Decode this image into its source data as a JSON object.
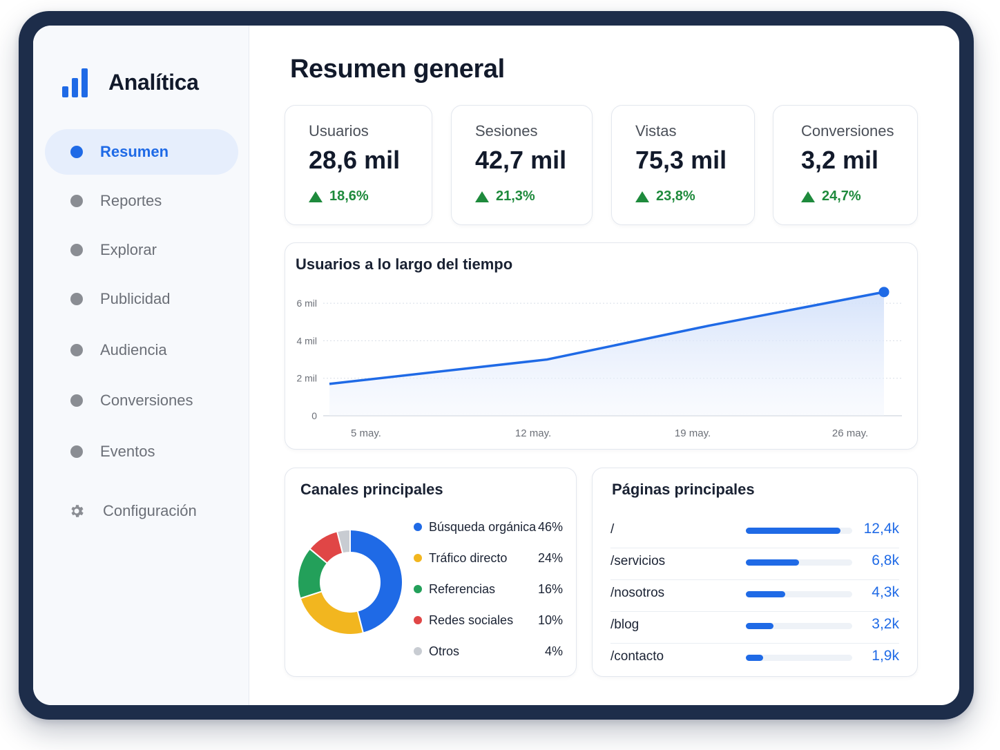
{
  "app": {
    "title": "Analítica"
  },
  "sidebar": {
    "items": [
      {
        "label": "Resumen",
        "active": true
      },
      {
        "label": "Reportes"
      },
      {
        "label": "Explorar"
      },
      {
        "label": "Publicidad"
      },
      {
        "label": "Audiencia"
      },
      {
        "label": "Conversiones"
      },
      {
        "label": "Eventos"
      }
    ],
    "settings": {
      "label": "Configuración",
      "icon": "gear-icon"
    }
  },
  "main": {
    "title": "Resumen general",
    "kpis": [
      {
        "label": "Usuarios",
        "value": "28,6 mil",
        "delta": "18,6%"
      },
      {
        "label": "Sesiones",
        "value": "42,7 mil",
        "delta": "21,3%"
      },
      {
        "label": "Vistas",
        "value": "75,3 mil",
        "delta": "23,8%"
      },
      {
        "label": "Conversiones",
        "value": "3,2 mil",
        "delta": "24,7%"
      }
    ],
    "users_chart": {
      "title": "Usuarios a lo largo del tiempo",
      "y_ticks": [
        "0",
        "2 mil",
        "4 mil",
        "6 mil"
      ],
      "x_ticks": [
        "5 may.",
        "12 may.",
        "19 may.",
        "26 may."
      ]
    },
    "channels": {
      "title": "Canales principales",
      "items": [
        {
          "label": "Búsqueda orgánica",
          "pct": "46%",
          "color": "#1f6ae6"
        },
        {
          "label": "Tráfico directo",
          "pct": "24%",
          "color": "#f2b61f"
        },
        {
          "label": "Referencias",
          "pct": "16%",
          "color": "#23a05a"
        },
        {
          "label": "Redes sociales",
          "pct": "10%",
          "color": "#e04646"
        },
        {
          "label": "Otros",
          "pct": "4%",
          "color": "#c8ccd2"
        }
      ]
    },
    "pages": {
      "title": "Páginas principales",
      "rows": [
        {
          "path": "/",
          "value": "12,4k",
          "share": 0.89
        },
        {
          "path": "/servicios",
          "value": "6,8k",
          "share": 0.5
        },
        {
          "path": "/nosotros",
          "value": "4,3k",
          "share": 0.37
        },
        {
          "path": "/blog",
          "value": "3,2k",
          "share": 0.26
        },
        {
          "path": "/contacto",
          "value": "1,9k",
          "share": 0.16
        }
      ]
    }
  },
  "colors": {
    "accent": "#1f6ae6",
    "positive": "#1e8a3c",
    "frame": "#1d2d4a"
  },
  "chart_data": [
    {
      "type": "area",
      "title": "Usuarios a lo largo del tiempo",
      "x": [
        "5 may.",
        "12 may.",
        "19 may.",
        "26 may."
      ],
      "series": [
        {
          "x": [
            "2025-05-05",
            "2025-05-12",
            "2025-05-19",
            "2025-05-26"
          ],
          "values": [
            1700,
            3000,
            4800,
            6600
          ]
        }
      ],
      "ylim": [
        0,
        7000
      ],
      "y_ticks": [
        0,
        2000,
        4000,
        6000
      ],
      "grid": true
    },
    {
      "type": "pie",
      "title": "Canales principales",
      "categories": [
        "Búsqueda orgánica",
        "Tráfico directo",
        "Referencias",
        "Redes sociales",
        "Otros"
      ],
      "values": [
        46,
        24,
        16,
        10,
        4
      ],
      "legend": "right"
    }
  ]
}
